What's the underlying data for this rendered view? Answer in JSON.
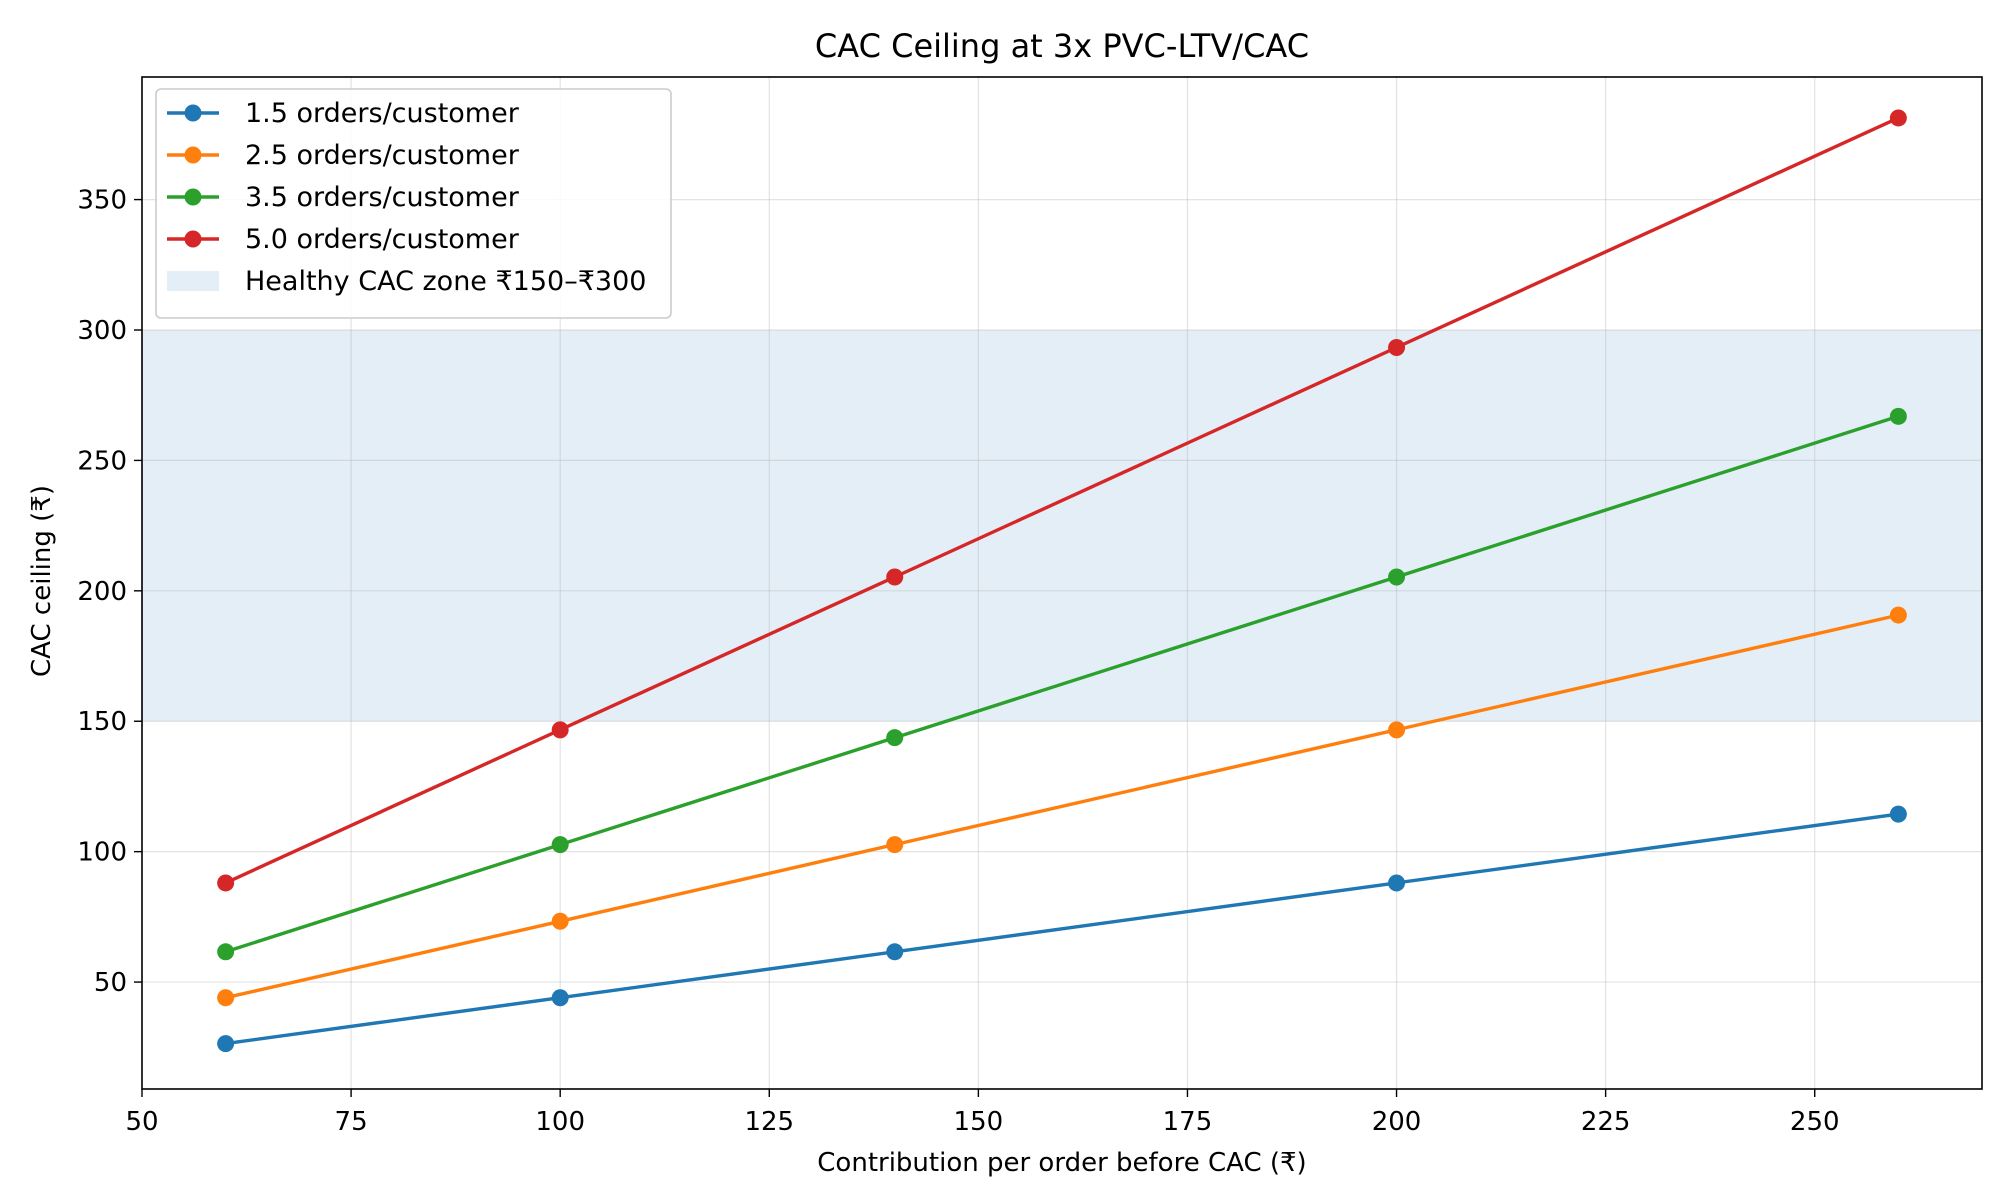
{
  "chart_data": {
    "type": "line",
    "title": "CAC Ceiling at 3x PVC-LTV/CAC",
    "xlabel": "Contribution per order before CAC (₹)",
    "ylabel": "CAC ceiling (₹)",
    "xlim": [
      50,
      270
    ],
    "ylim": [
      9,
      397
    ],
    "xticks": [
      50,
      75,
      100,
      125,
      150,
      175,
      200,
      225,
      250
    ],
    "yticks": [
      50,
      100,
      150,
      200,
      250,
      300,
      350
    ],
    "grid": true,
    "legend_position": "top-left",
    "x": [
      60,
      100,
      140,
      200,
      260
    ],
    "series": [
      {
        "name": "1.5 orders/customer",
        "color": "#1f77b4",
        "values": [
          26.4,
          44,
          61.6,
          88,
          114.4
        ]
      },
      {
        "name": "2.5 orders/customer",
        "color": "#ff7f0e",
        "values": [
          44,
          73.3,
          102.7,
          146.7,
          190.7
        ]
      },
      {
        "name": "3.5 orders/customer",
        "color": "#2ca02c",
        "values": [
          61.6,
          102.7,
          143.7,
          205.3,
          266.9
        ]
      },
      {
        "name": "5.0 orders/customer",
        "color": "#d62728",
        "values": [
          88,
          146.7,
          205.3,
          293.3,
          381.3
        ]
      }
    ],
    "bands": [
      {
        "name": "Healthy CAC zone ₹150–₹300",
        "y0": 150,
        "y1": 300,
        "color": "#1f77b4",
        "opacity": 0.12
      }
    ]
  }
}
